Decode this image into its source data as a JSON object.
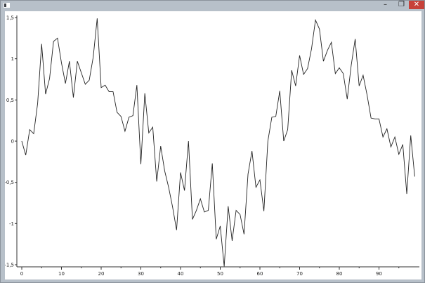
{
  "window": {
    "icon": "app-window-icon",
    "controls": {
      "minimize": "–",
      "maximize": "❐",
      "close": "✕"
    },
    "close_color": "#c7413a"
  },
  "chart_data": {
    "type": "line",
    "title": "",
    "xlabel": "",
    "ylabel": "",
    "xlim": [
      0,
      100
    ],
    "ylim": [
      -1.5,
      1.5
    ],
    "x_ticks": [
      "0",
      "10",
      "20",
      "30",
      "40",
      "50",
      "60",
      "70",
      "80",
      "90"
    ],
    "y_ticks": [
      "1,5",
      "1",
      "0,5",
      "0",
      "-0,5",
      "-1",
      "-1,5"
    ],
    "grid": false,
    "legend": "none",
    "line_color": "#222222",
    "series": [
      {
        "values": [
          0.0,
          -0.17,
          0.14,
          0.09,
          0.46,
          1.18,
          0.57,
          0.76,
          1.21,
          1.25,
          0.95,
          0.7,
          0.97,
          0.53,
          0.97,
          0.83,
          0.69,
          0.74,
          1.02,
          1.49,
          0.65,
          0.68,
          0.6,
          0.6,
          0.35,
          0.3,
          0.12,
          0.29,
          0.31,
          0.68,
          -0.28,
          0.58,
          0.1,
          0.17,
          -0.49,
          -0.06,
          -0.36,
          -0.56,
          -0.8,
          -1.08,
          -0.38,
          -0.6,
          0.0,
          -0.95,
          -0.84,
          -0.7,
          -0.86,
          -0.84,
          -0.27,
          -1.19,
          -1.03,
          -1.52,
          -0.79,
          -1.21,
          -0.84,
          -0.89,
          -1.13,
          -0.4,
          -0.12,
          -0.56,
          -0.47,
          -0.85,
          0.0,
          0.29,
          0.3,
          0.61,
          0.0,
          0.14,
          0.86,
          0.67,
          1.04,
          0.81,
          0.88,
          1.12,
          1.47,
          1.36,
          0.97,
          1.1,
          1.2,
          0.82,
          0.89,
          0.82,
          0.51,
          0.92,
          1.24,
          0.67,
          0.8,
          0.56,
          0.28,
          0.27,
          0.27,
          0.05,
          0.15,
          -0.07,
          0.05,
          -0.16,
          -0.04,
          -0.64,
          0.07,
          -0.43
        ]
      }
    ]
  }
}
